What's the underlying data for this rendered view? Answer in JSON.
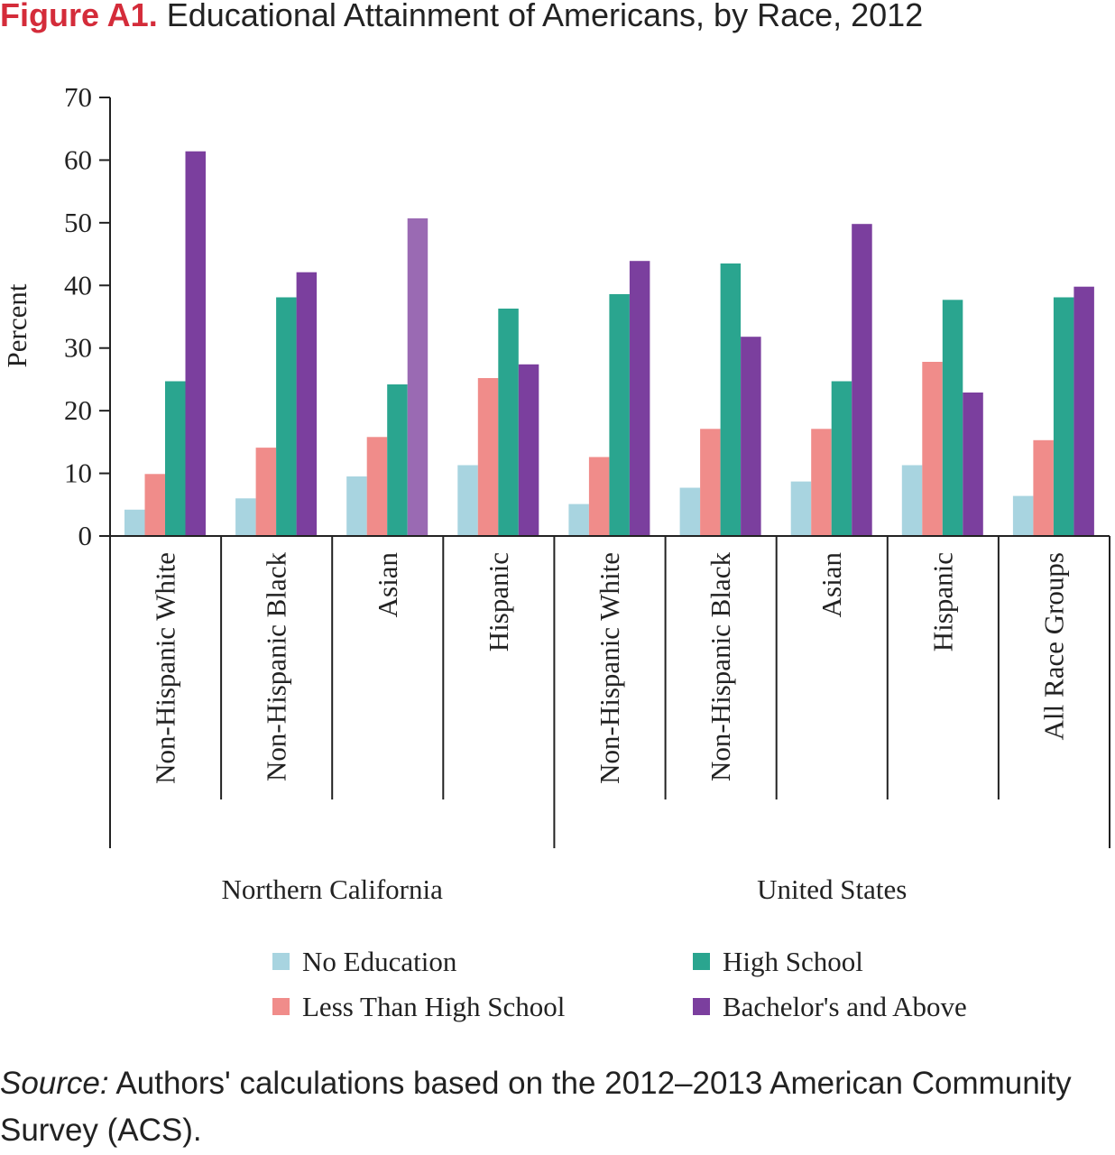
{
  "figure": {
    "label": "Figure A1.",
    "title": "Educational Attainment of Americans, by Race, 2012"
  },
  "source": {
    "label": "Source:",
    "text": "Authors' calculations based on the 2012–2013 American Community Survey (ACS)."
  },
  "chart_data": {
    "type": "bar",
    "ylabel": "Percent",
    "ylim": [
      0,
      70
    ],
    "yticks": [
      0,
      10,
      20,
      30,
      40,
      50,
      60,
      70
    ],
    "grid": false,
    "legend_position": "bottom",
    "groups": [
      {
        "label": "Northern California",
        "categories": [
          "Non-Hispanic White",
          "Non-Hispanic Black",
          "Asian",
          "Hispanic"
        ]
      },
      {
        "label": "United States",
        "categories": [
          "Non-Hispanic White",
          "Non-Hispanic Black",
          "Asian",
          "Hispanic",
          "All Race Groups"
        ]
      }
    ],
    "categories": [
      "Non-Hispanic White",
      "Non-Hispanic Black",
      "Asian",
      "Hispanic",
      "Non-Hispanic White",
      "Non-Hispanic Black",
      "Asian",
      "Hispanic",
      "All Race Groups"
    ],
    "series": [
      {
        "name": "No Education",
        "color": "#a8d4e0",
        "values": [
          4.2,
          6.0,
          9.5,
          11.3,
          5.1,
          7.7,
          8.7,
          11.3,
          6.4
        ]
      },
      {
        "name": "Less Than High School",
        "color": "#f08c8a",
        "values": [
          9.9,
          14.1,
          15.8,
          25.2,
          12.6,
          17.1,
          17.1,
          27.8,
          15.3
        ]
      },
      {
        "name": "High School",
        "color": "#2aa58f",
        "values": [
          24.7,
          38.1,
          24.2,
          36.3,
          38.6,
          43.5,
          24.7,
          37.7,
          38.1
        ]
      },
      {
        "name": "Bachelor's and Above",
        "color": "#7b3f9e",
        "values": [
          61.4,
          42.1,
          50.7,
          27.4,
          43.9,
          31.8,
          49.8,
          22.9,
          39.8
        ]
      }
    ],
    "highlight": {
      "series": 3,
      "category": 2,
      "color": "#9a6ab3"
    }
  }
}
